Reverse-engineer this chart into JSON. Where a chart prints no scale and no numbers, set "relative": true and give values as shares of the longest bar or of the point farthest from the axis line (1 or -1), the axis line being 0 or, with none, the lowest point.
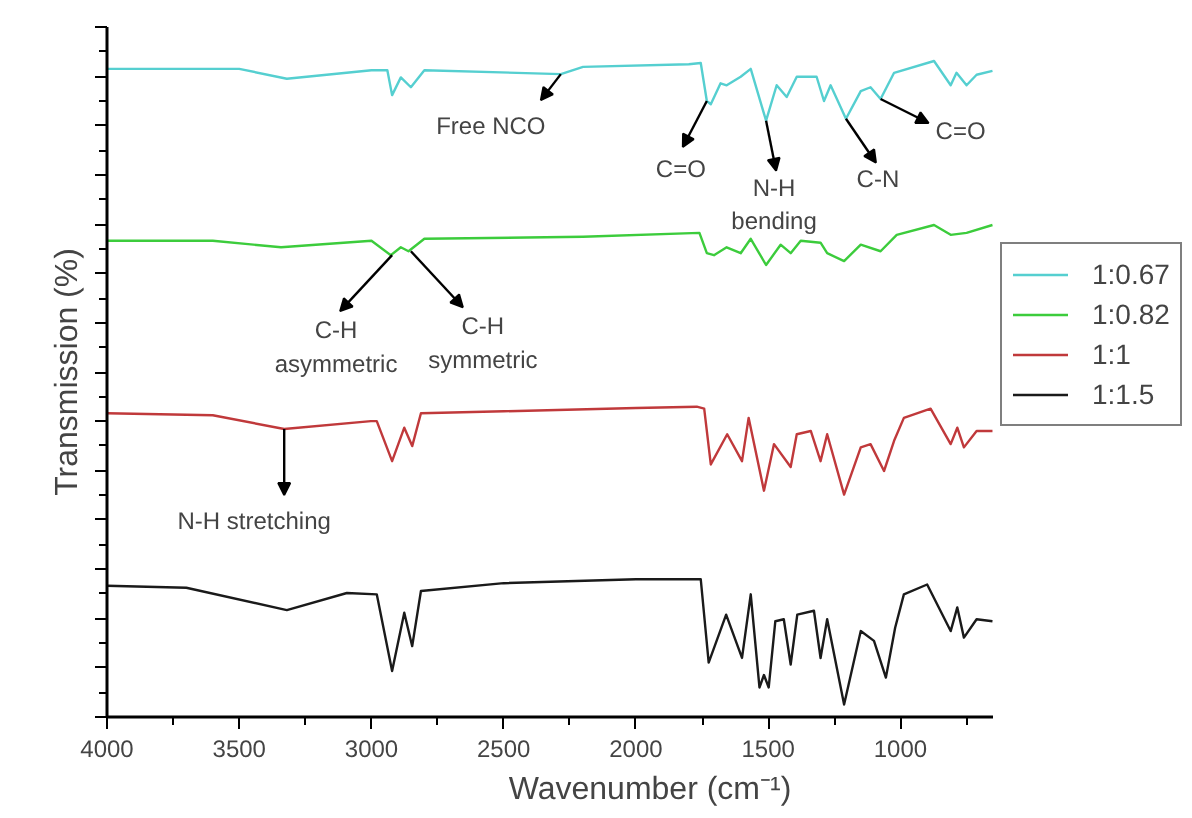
{
  "chart_data": {
    "type": "line",
    "relative": true,
    "xlabel": "Wavenumber (cm⁻¹)",
    "ylabel": "Transmission (%)",
    "xlim": [
      4000,
      650
    ],
    "xticks": [
      4000,
      3500,
      3000,
      2500,
      2000,
      1500,
      1000
    ],
    "tick_labels": "x",
    "legend": "right",
    "grid": false,
    "series": [
      {
        "name": "1:0.67",
        "color": "#55cfd0",
        "x": [
          4000,
          3500,
          3320,
          3000,
          2940,
          2922,
          2889,
          2851,
          2800,
          2284,
          2200,
          1800,
          1755,
          1732,
          1717,
          1680,
          1657,
          1604,
          1566,
          1508,
          1468,
          1430,
          1392,
          1317,
          1289,
          1264,
          1206,
          1150,
          1113,
          1075,
          1024,
          873,
          810,
          788,
          750,
          712,
          652
        ],
        "values": [
          0.988,
          0.988,
          0.973,
          0.986,
          0.986,
          0.948,
          0.975,
          0.96,
          0.986,
          0.98,
          0.991,
          0.995,
          0.997,
          0.939,
          0.934,
          0.966,
          0.963,
          0.976,
          0.988,
          0.909,
          0.963,
          0.945,
          0.976,
          0.976,
          0.939,
          0.963,
          0.912,
          0.954,
          0.96,
          0.942,
          0.982,
          1.0,
          0.963,
          0.982,
          0.963,
          0.979,
          0.985
        ]
      },
      {
        "name": "1:0.82",
        "color": "#3ccc3c",
        "x": [
          4000,
          3600,
          3342,
          3000,
          2927,
          2889,
          2860,
          2800,
          2200,
          1760,
          1732,
          1705,
          1657,
          1604,
          1566,
          1508,
          1453,
          1415,
          1377,
          1302,
          1277,
          1213,
          1150,
          1075,
          1014,
          873,
          810,
          750,
          652
        ],
        "values": [
          0.726,
          0.726,
          0.716,
          0.726,
          0.704,
          0.716,
          0.71,
          0.729,
          0.732,
          0.738,
          0.707,
          0.704,
          0.716,
          0.707,
          0.729,
          0.689,
          0.72,
          0.707,
          0.726,
          0.723,
          0.707,
          0.695,
          0.72,
          0.71,
          0.735,
          0.75,
          0.735,
          0.738,
          0.75
        ]
      },
      {
        "name": "1:1",
        "color": "#c0393b",
        "x": [
          4000,
          3600,
          3330,
          3002,
          2980,
          2922,
          2876,
          2846,
          2813,
          2500,
          2000,
          1770,
          1742,
          1717,
          1655,
          1599,
          1574,
          1516,
          1478,
          1415,
          1392,
          1339,
          1302,
          1277,
          1213,
          1150,
          1113,
          1062,
          1024,
          987,
          886,
          810,
          785,
          760,
          712,
          652
        ],
        "values": [
          0.463,
          0.46,
          0.439,
          0.451,
          0.451,
          0.39,
          0.441,
          0.413,
          0.463,
          0.466,
          0.471,
          0.473,
          0.47,
          0.385,
          0.431,
          0.39,
          0.456,
          0.345,
          0.416,
          0.381,
          0.431,
          0.436,
          0.39,
          0.431,
          0.339,
          0.411,
          0.416,
          0.375,
          0.421,
          0.456,
          0.47,
          0.416,
          0.441,
          0.411,
          0.436,
          0.436
        ]
      },
      {
        "name": "1:1.5",
        "color": "#1a1a1a",
        "x": [
          4000,
          3700,
          3320,
          3093,
          2980,
          2922,
          2876,
          2846,
          2813,
          2500,
          2000,
          1755,
          1725,
          1659,
          1599,
          1566,
          1533,
          1516,
          1498,
          1473,
          1441,
          1415,
          1390,
          1327,
          1302,
          1277,
          1213,
          1150,
          1100,
          1055,
          1020,
          987,
          899,
          810,
          785,
          760,
          712,
          652
        ],
        "values": [
          0.2,
          0.197,
          0.163,
          0.189,
          0.187,
          0.07,
          0.159,
          0.108,
          0.192,
          0.204,
          0.21,
          0.21,
          0.083,
          0.156,
          0.09,
          0.187,
          0.045,
          0.064,
          0.045,
          0.146,
          0.149,
          0.08,
          0.156,
          0.162,
          0.09,
          0.149,
          0.019,
          0.131,
          0.116,
          0.06,
          0.136,
          0.187,
          0.202,
          0.131,
          0.167,
          0.121,
          0.149,
          0.146
        ]
      }
    ],
    "annotations": [
      {
        "text": "Free NCO",
        "x": 2284,
        "y": 0.98
      },
      {
        "text": "C=O",
        "x": 1732,
        "y": 0.939
      },
      {
        "text": "N-H\nbending",
        "x": 1508,
        "y": 0.909
      },
      {
        "text": "C-N",
        "x": 1206,
        "y": 0.912
      },
      {
        "text": "C=O",
        "x": 1075,
        "y": 0.942
      },
      {
        "text": "C-H\nasymmetric",
        "x": 2922,
        "y": 0.704
      },
      {
        "text": "C-H\nsymmetric",
        "x": 2851,
        "y": 0.71
      },
      {
        "text": "N-H stretching",
        "x": 3330,
        "y": 0.439
      }
    ]
  }
}
